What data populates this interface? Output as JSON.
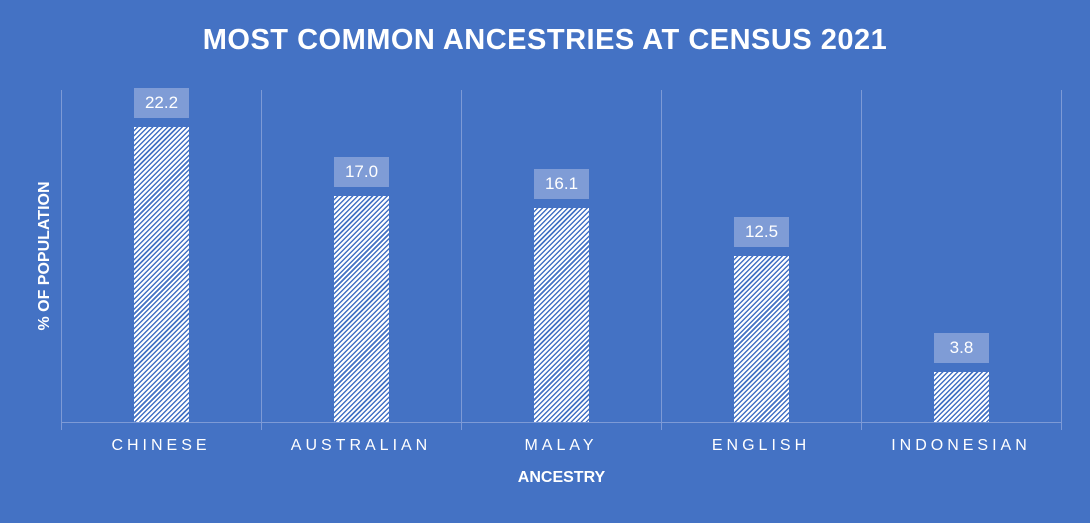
{
  "chart_data": {
    "type": "bar",
    "title": "MOST COMMON ANCESTRIES AT CENSUS 2021",
    "xlabel": "ANCESTRY",
    "ylabel": "% OF POPULATION",
    "categories": [
      "CHINESE",
      "AUSTRALIAN",
      "MALAY",
      "ENGLISH",
      "INDONESIAN"
    ],
    "values": [
      22.2,
      17.0,
      16.1,
      12.5,
      3.8
    ],
    "value_labels": [
      "22.2",
      "17.0",
      "16.1",
      "12.5",
      "3.8"
    ],
    "ylim": [
      0,
      25
    ],
    "grid": "vertical category separators",
    "legend": "none",
    "colors": {
      "background": "#4472c4",
      "bar_pattern": "white diagonal hatch",
      "label_box": "#7f9cd6",
      "text": "#ffffff"
    }
  }
}
